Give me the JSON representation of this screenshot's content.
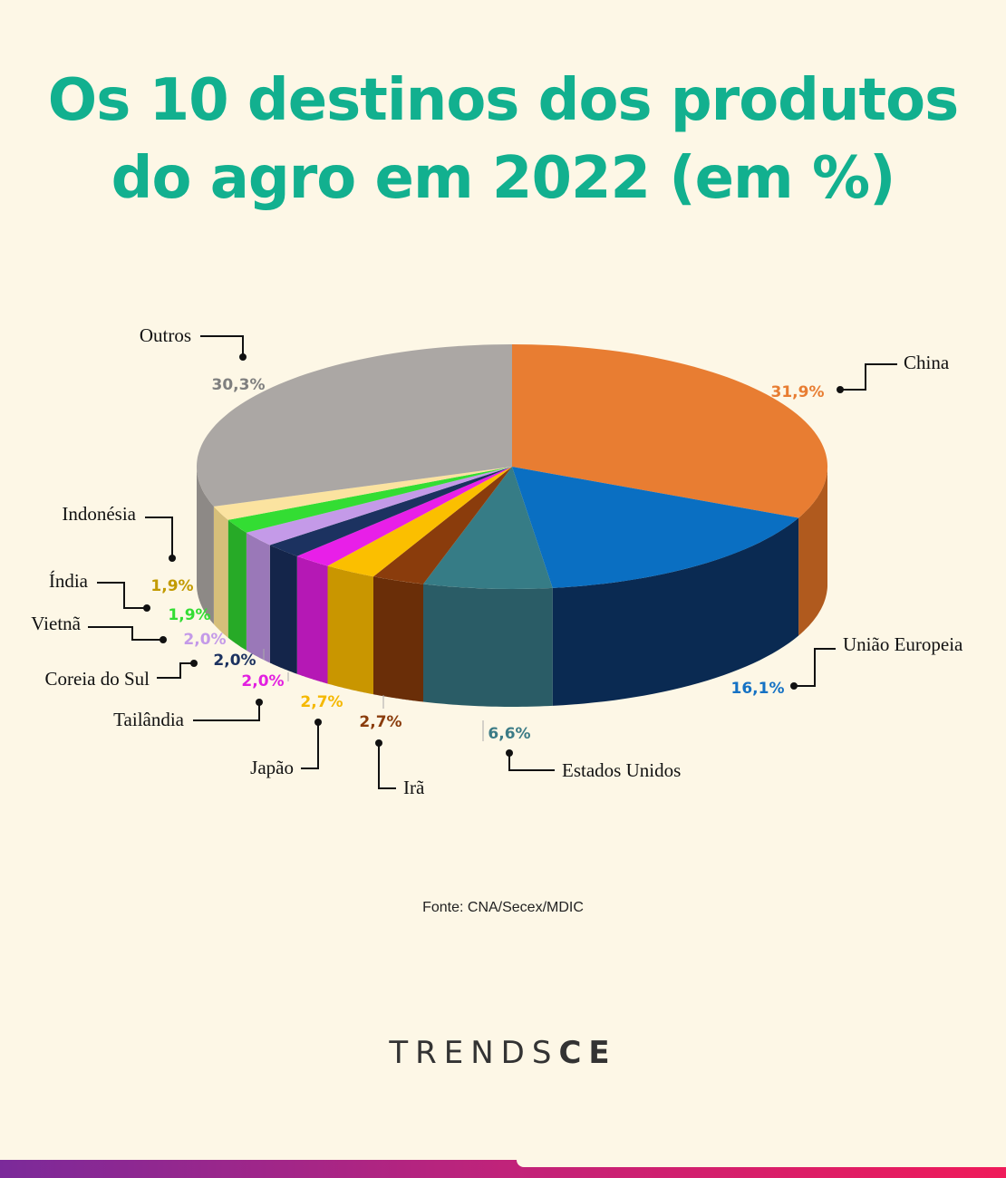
{
  "title": {
    "line1": "Os 10 destinos dos produtos",
    "line2": "do agro em 2022 (em %)"
  },
  "chart_data": {
    "type": "pie",
    "title": "Os 10 destinos dos produtos do agro em 2022 (em %)",
    "unit": "%",
    "slices": [
      {
        "name": "China",
        "value": 31.9,
        "label": "31,9%",
        "color": "#e87d32",
        "side": "#b05a1e",
        "labelColor": "#e87d32"
      },
      {
        "name": "União Europeia",
        "value": 16.1,
        "label": "16,1%",
        "color": "#0a6fc2",
        "side": "#0a2a52",
        "labelColor": "#1572c4"
      },
      {
        "name": "Estados Unidos",
        "value": 6.6,
        "label": "6,6%",
        "color": "#367c86",
        "side": "#2a5c66",
        "labelColor": "#3b7b86"
      },
      {
        "name": "Irã",
        "value": 2.7,
        "label": "2,7%",
        "color": "#8a3c0c",
        "side": "#6a2e08",
        "labelColor": "#8a3c0c"
      },
      {
        "name": "Japão",
        "value": 2.7,
        "label": "2,7%",
        "color": "#fbbf00",
        "side": "#c99600",
        "labelColor": "#f5b800"
      },
      {
        "name": "Tailândia",
        "value": 2.0,
        "label": "2,0%",
        "color": "#e81fe8",
        "side": "#b518b5",
        "labelColor": "#e21fe0"
      },
      {
        "name": "Coreia do Sul",
        "value": 2.0,
        "label": "2,0%",
        "color": "#1c3260",
        "side": "#14254a",
        "labelColor": "#1c3260"
      },
      {
        "name": "Vietnã",
        "value": 2.0,
        "label": "2,0%",
        "color": "#c49ae8",
        "side": "#9a78b8",
        "labelColor": "#c49ae8"
      },
      {
        "name": "Índia",
        "value": 1.9,
        "label": "1,9%",
        "color": "#33dd33",
        "side": "#27aa27",
        "labelColor": "#33dd33"
      },
      {
        "name": "Indonésia",
        "value": 1.9,
        "label": "1,9%",
        "color": "#fbe3a0",
        "side": "#d6bf7a",
        "labelColor": "#c29a00"
      },
      {
        "name": "Outros",
        "value": 30.3,
        "label": "30,3%",
        "color": "#aba7a4",
        "side": "#8d8986",
        "labelColor": "#7f7f7f"
      }
    ]
  },
  "source": "Fonte: CNA/Secex/MDIC",
  "brand": {
    "light": "TRENDS",
    "bold": "CE"
  }
}
